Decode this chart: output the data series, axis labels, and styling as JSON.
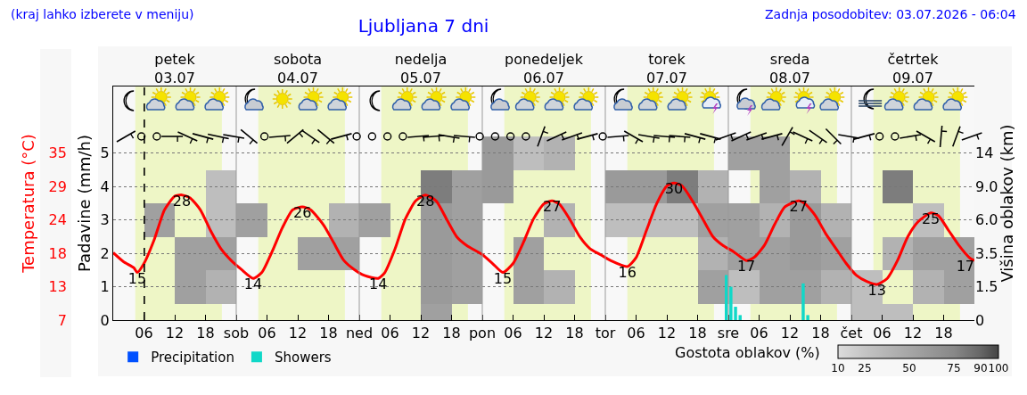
{
  "chart_data": [
    {
      "type": "line",
      "title": "Ljubljana 7 dni",
      "xlim": [
        "2026-07-03T00:00",
        "2026-07-10T00:00"
      ],
      "xticks": [
        {
          "value": "2026-07-03T06:00",
          "label": "06"
        },
        {
          "value": "2026-07-03T12:00",
          "label": "12"
        },
        {
          "value": "2026-07-03T18:00",
          "label": "18"
        },
        {
          "value": "2026-07-04T00:00",
          "label": "sob"
        },
        {
          "value": "2026-07-04T06:00",
          "label": "06"
        },
        {
          "value": "2026-07-04T12:00",
          "label": "12"
        },
        {
          "value": "2026-07-04T18:00",
          "label": "18"
        },
        {
          "value": "2026-07-05T00:00",
          "label": "ned"
        },
        {
          "value": "2026-07-05T06:00",
          "label": "06"
        },
        {
          "value": "2026-07-05T12:00",
          "label": "12"
        },
        {
          "value": "2026-07-05T18:00",
          "label": "18"
        },
        {
          "value": "2026-07-06T00:00",
          "label": "pon"
        },
        {
          "value": "2026-07-06T06:00",
          "label": "06"
        },
        {
          "value": "2026-07-06T12:00",
          "label": "12"
        },
        {
          "value": "2026-07-06T18:00",
          "label": "18"
        },
        {
          "value": "2026-07-07T00:00",
          "label": "tor"
        },
        {
          "value": "2026-07-07T06:00",
          "label": "06"
        },
        {
          "value": "2026-07-07T12:00",
          "label": "12"
        },
        {
          "value": "2026-07-07T18:00",
          "label": "18"
        },
        {
          "value": "2026-07-08T00:00",
          "label": "sre"
        },
        {
          "value": "2026-07-08T06:00",
          "label": "06"
        },
        {
          "value": "2026-07-08T12:00",
          "label": "12"
        },
        {
          "value": "2026-07-08T18:00",
          "label": "18"
        },
        {
          "value": "2026-07-09T00:00",
          "label": "čet"
        },
        {
          "value": "2026-07-09T06:00",
          "label": "06"
        },
        {
          "value": "2026-07-09T12:00",
          "label": "12"
        },
        {
          "value": "2026-07-09T18:00",
          "label": "18"
        }
      ],
      "x2lim": [
        "2026-07-03T00:00",
        "2026-07-10T00:00"
      ],
      "x2ticks": [
        {
          "value": "2026-07-03T12:00",
          "label": "petek\n03.07"
        },
        {
          "value": "2026-07-04T12:00",
          "label": "sobota\n04.07"
        },
        {
          "value": "2026-07-05T12:00",
          "label": "nedelja\n05.07"
        },
        {
          "value": "2026-07-06T12:00",
          "label": "ponedeljek\n06.07"
        },
        {
          "value": "2026-07-07T12:00",
          "label": "torek\n07.07"
        },
        {
          "value": "2026-07-08T12:00",
          "label": "sreda\n08.07"
        },
        {
          "value": "2026-07-09T12:00",
          "label": "četrtek\n09.07"
        }
      ],
      "ylabel": "Padavine (mm/h)",
      "ylim": [
        0,
        7
      ],
      "yticks": [
        0,
        1,
        2,
        3,
        4,
        5
      ],
      "y2label": "Temperatura (°C)",
      "y2lim": [
        7,
        46.2
      ],
      "y2ticks": [
        7,
        {
          "value": 12.6,
          "label": "13"
        },
        {
          "value": 18.2,
          "label": "18"
        },
        {
          "value": 23.8,
          "label": "24"
        },
        {
          "value": 29.4,
          "label": "29"
        },
        35
      ],
      "series": [
        {
          "type": "line",
          "axis": "y2",
          "color": "#ff0000",
          "x": [
            "2026-07-03T00:00",
            "2026-07-03T02:00",
            "2026-07-03T04:00",
            "2026-07-03T04:42",
            "2026-07-03T06:00",
            "2026-07-03T08:00",
            "2026-07-03T10:00",
            "2026-07-03T12:00",
            "2026-07-03T13:24",
            "2026-07-03T15:00",
            "2026-07-03T17:00",
            "2026-07-03T19:00",
            "2026-07-03T21:00",
            "2026-07-03T23:00",
            "2026-07-04T01:00",
            "2026-07-04T03:18",
            "2026-07-04T05:00",
            "2026-07-04T07:00",
            "2026-07-04T09:00",
            "2026-07-04T11:00",
            "2026-07-04T12:54",
            "2026-07-04T14:30",
            "2026-07-04T17:00",
            "2026-07-04T19:00",
            "2026-07-04T21:00",
            "2026-07-04T23:00",
            "2026-07-05T01:00",
            "2026-07-05T03:42",
            "2026-07-05T05:00",
            "2026-07-05T07:00",
            "2026-07-05T09:00",
            "2026-07-05T11:00",
            "2026-07-05T12:54",
            "2026-07-05T15:00",
            "2026-07-05T17:00",
            "2026-07-05T19:00",
            "2026-07-05T21:00",
            "2026-07-06T00:00",
            "2026-07-06T02:00",
            "2026-07-06T04:00",
            "2026-07-06T06:00",
            "2026-07-06T08:00",
            "2026-07-06T10:00",
            "2026-07-06T12:00",
            "2026-07-06T13:36",
            "2026-07-06T15:00",
            "2026-07-06T17:00",
            "2026-07-06T19:00",
            "2026-07-06T21:00",
            "2026-07-06T23:00",
            "2026-07-07T01:00",
            "2026-07-07T04:18",
            "2026-07-07T06:00",
            "2026-07-07T08:00",
            "2026-07-07T10:00",
            "2026-07-07T12:00",
            "2026-07-07T13:24",
            "2026-07-07T15:00",
            "2026-07-07T17:00",
            "2026-07-07T19:00",
            "2026-07-07T21:00",
            "2026-07-07T23:00",
            "2026-07-08T01:00",
            "2026-07-08T03:30",
            "2026-07-08T05:00",
            "2026-07-08T07:00",
            "2026-07-08T09:00",
            "2026-07-08T11:00",
            "2026-07-08T13:42",
            "2026-07-08T15:00",
            "2026-07-08T17:00",
            "2026-07-08T19:00",
            "2026-07-08T21:00",
            "2026-07-08T23:00",
            "2026-07-09T01:00",
            "2026-07-09T03:00",
            "2026-07-09T05:00",
            "2026-07-09T07:00",
            "2026-07-09T09:00",
            "2026-07-09T11:00",
            "2026-07-09T13:00",
            "2026-07-09T15:30",
            "2026-07-09T17:00",
            "2026-07-09T19:00",
            "2026-07-09T21:00",
            "2026-07-09T23:00",
            "2026-07-10T00:00"
          ],
          "values": [
            18.3,
            16.8,
            15.8,
            15,
            16.5,
            20.5,
            25.5,
            27.8,
            28,
            27.5,
            25.5,
            22,
            19,
            17,
            15.5,
            14,
            15,
            18.5,
            22.5,
            25.5,
            26,
            25.5,
            23,
            20,
            17,
            15.5,
            14.5,
            14,
            15,
            19,
            24,
            27,
            28,
            27,
            24,
            21,
            19.5,
            18,
            16.5,
            15,
            16.5,
            20,
            24,
            26.5,
            27,
            26.5,
            24,
            21,
            19,
            18,
            17,
            16,
            17.5,
            22,
            26.5,
            29.5,
            30,
            29.5,
            27,
            24,
            21,
            19.5,
            18.5,
            17,
            17.5,
            19.5,
            23,
            26,
            27,
            26.5,
            24.5,
            21.5,
            19,
            16.5,
            14.5,
            13.5,
            13,
            14,
            17,
            21,
            23.5,
            25,
            24.5,
            22,
            19.5,
            17.5,
            17
          ],
          "value_labels": [
            null,
            null,
            null,
            "15",
            null,
            null,
            null,
            null,
            "28",
            null,
            null,
            null,
            null,
            null,
            null,
            "14",
            null,
            null,
            null,
            null,
            "26",
            null,
            null,
            null,
            null,
            null,
            null,
            "14",
            null,
            null,
            null,
            null,
            "28",
            null,
            null,
            null,
            null,
            null,
            null,
            "15",
            null,
            null,
            null,
            null,
            "27",
            null,
            null,
            null,
            null,
            null,
            null,
            "16",
            null,
            null,
            null,
            null,
            "30",
            null,
            null,
            null,
            null,
            null,
            null,
            "17",
            null,
            null,
            null,
            null,
            "27",
            null,
            null,
            null,
            null,
            null,
            null,
            null,
            "13",
            null,
            null,
            null,
            null,
            "25",
            null,
            null,
            null,
            null,
            "17"
          ]
        },
        {
          "type": "bar",
          "name": "Precipitation",
          "color": "#0050ff"
        },
        {
          "type": "bar",
          "name": "Showers",
          "color": "#10d8c8",
          "x": [
            "2026-07-07T23:36",
            "2026-07-08T00:30",
            "2026-07-08T01:24",
            "2026-07-08T02:18",
            "2026-07-08T14:36",
            "2026-07-08T15:30"
          ],
          "values": [
            1.35,
            1.0,
            0.4,
            0.15,
            1.1,
            0.15
          ]
        }
      ],
      "bands": [
        {
          "axis": "x",
          "from": "2026-07-03T04:18",
          "to": "2026-07-03T21:12",
          "color": "#eef6c6"
        },
        {
          "axis": "x",
          "from": "2026-07-04T04:18",
          "to": "2026-07-04T21:12",
          "color": "#eef6c6"
        },
        {
          "axis": "x",
          "from": "2026-07-05T04:18",
          "to": "2026-07-05T21:12",
          "color": "#eef6c6"
        },
        {
          "axis": "x",
          "from": "2026-07-06T04:18",
          "to": "2026-07-06T21:12",
          "color": "#eef6c6"
        },
        {
          "axis": "x",
          "from": "2026-07-07T04:18",
          "to": "2026-07-07T21:12",
          "color": "#eef6c6"
        },
        {
          "axis": "x",
          "from": "2026-07-08T04:18",
          "to": "2026-07-08T21:12",
          "color": "#eef6c6"
        },
        {
          "axis": "x",
          "from": "2026-07-09T04:18",
          "to": "2026-07-09T21:12",
          "color": "#eef6c6"
        }
      ],
      "ref_lines": [
        {
          "axis": "x",
          "value": "2026-07-03T06:04",
          "color": "#000000",
          "line_style": "dashed"
        },
        {
          "axis": "x",
          "value": "2026-07-04T00:00",
          "color": "#999999"
        },
        {
          "axis": "x",
          "value": "2026-07-05T00:00",
          "color": "#999999"
        },
        {
          "axis": "x",
          "value": "2026-07-06T00:00",
          "color": "#999999"
        },
        {
          "axis": "x",
          "value": "2026-07-07T00:00",
          "color": "#999999"
        },
        {
          "axis": "x",
          "value": "2026-07-08T00:00",
          "color": "#999999"
        },
        {
          "axis": "x",
          "value": "2026-07-09T00:00",
          "color": "#999999"
        }
      ],
      "grid": "y",
      "legend": "bottom",
      "annotations": [
        "(kraj lahko izberete v meniju)",
        "Zadnja posodobitev: 03.07.2026 - 06:04"
      ]
    },
    {
      "type": "heatmap",
      "ylabel": "Višina oblakov (km)",
      "tick_labels": "y",
      "x": [
        "2026-07-03T03:00",
        "2026-07-03T09:00",
        "2026-07-03T15:00",
        "2026-07-03T21:00",
        "2026-07-04T03:00",
        "2026-07-04T09:00",
        "2026-07-04T15:00",
        "2026-07-04T21:00",
        "2026-07-05T03:00",
        "2026-07-05T09:00",
        "2026-07-05T15:00",
        "2026-07-05T21:00",
        "2026-07-06T03:00",
        "2026-07-06T09:00",
        "2026-07-06T15:00",
        "2026-07-06T21:00",
        "2026-07-07T03:00",
        "2026-07-07T09:00",
        "2026-07-07T15:00",
        "2026-07-07T21:00",
        "2026-07-08T03:00",
        "2026-07-08T09:00",
        "2026-07-08T15:00",
        "2026-07-08T21:00",
        "2026-07-09T03:00",
        "2026-07-09T09:00",
        "2026-07-09T15:00",
        "2026-07-09T21:00"
      ],
      "xlim": [
        "2026-07-03T00:00",
        "2026-07-10T00:00"
      ],
      "y_categories": [
        "14",
        "9.0",
        "6.0",
        "3.5",
        "1.5",
        "0"
      ],
      "cells": [
        [
          null,
          null,
          null,
          null,
          null,
          null,
          null,
          null,
          null,
          null,
          null,
          null,
          60,
          30,
          40,
          null,
          null,
          null,
          null,
          null,
          55,
          55,
          null,
          null,
          null,
          null,
          null,
          null
        ],
        [
          null,
          null,
          null,
          30,
          null,
          null,
          null,
          null,
          null,
          null,
          80,
          55,
          60,
          null,
          null,
          null,
          60,
          60,
          80,
          40,
          null,
          55,
          40,
          null,
          null,
          80,
          null,
          null
        ],
        [
          null,
          55,
          null,
          30,
          55,
          null,
          null,
          40,
          55,
          null,
          60,
          55,
          null,
          null,
          40,
          null,
          30,
          30,
          30,
          55,
          55,
          40,
          60,
          40,
          null,
          null,
          30,
          null
        ],
        [
          null,
          null,
          55,
          55,
          null,
          null,
          55,
          55,
          null,
          null,
          60,
          55,
          null,
          55,
          null,
          null,
          null,
          null,
          null,
          40,
          55,
          55,
          60,
          55,
          null,
          40,
          55,
          55
        ],
        [
          null,
          null,
          55,
          40,
          null,
          null,
          null,
          null,
          null,
          null,
          60,
          55,
          null,
          55,
          40,
          null,
          null,
          null,
          null,
          55,
          30,
          55,
          55,
          40,
          30,
          null,
          40,
          55
        ],
        [
          null,
          null,
          null,
          null,
          null,
          null,
          null,
          null,
          null,
          null,
          55,
          null,
          null,
          null,
          null,
          null,
          null,
          null,
          null,
          null,
          null,
          null,
          null,
          null,
          30,
          30,
          null,
          null
        ]
      ],
      "clim": [
        10,
        100
      ],
      "cticks": [
        10,
        25,
        50,
        75,
        90,
        100
      ],
      "clabel": "Gostota oblakov (%)"
    }
  ]
}
